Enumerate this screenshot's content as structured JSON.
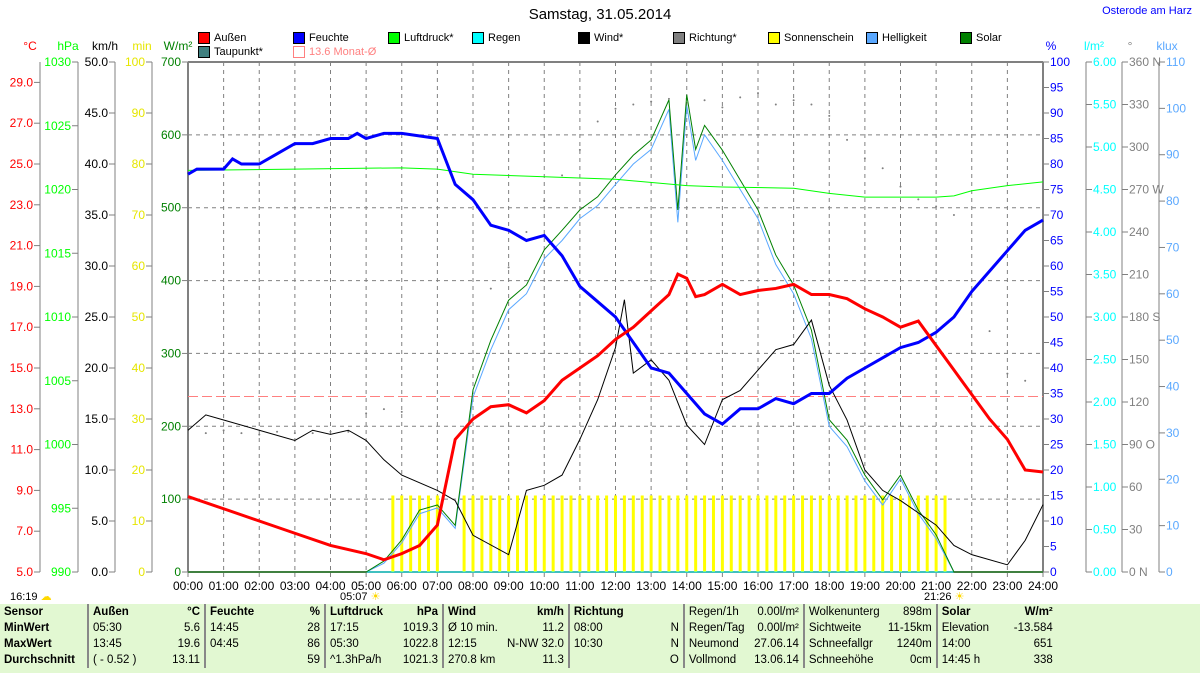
{
  "title": "Samstag, 31.05.2014",
  "location": "Osterode am Harz",
  "legend": [
    {
      "label": "Außen",
      "color": "#ff0000"
    },
    {
      "label": "Feuchte",
      "color": "#0000ff"
    },
    {
      "label": "Luftdruck*",
      "color": "#00ff00"
    },
    {
      "label": "Regen",
      "color": "#00ffff"
    },
    {
      "label": "Wind*",
      "color": "#000000"
    },
    {
      "label": "Richtung*",
      "color": "#808080"
    },
    {
      "label": "Sonnenschein",
      "color": "#ffff00"
    },
    {
      "label": "Helligkeit",
      "color": "#5aa8ff"
    },
    {
      "label": "Solar",
      "color": "#008000"
    },
    {
      "label": "Taupunkt*",
      "color": "#408080"
    },
    {
      "label": "13.6 Monat-Ø",
      "color": "#ff8080"
    }
  ],
  "markers": {
    "left": "16:19",
    "sunrise": "05:07",
    "sunset": "21:26"
  },
  "chart_data": {
    "type": "line",
    "title": "Samstag, 31.05.2014",
    "x_ticks": [
      "00:00",
      "01:00",
      "02:00",
      "03:00",
      "04:00",
      "05:00",
      "06:00",
      "07:00",
      "08:00",
      "09:00",
      "10:00",
      "11:00",
      "12:00",
      "13:00",
      "14:00",
      "15:00",
      "16:00",
      "17:00",
      "18:00",
      "19:00",
      "20:00",
      "21:00",
      "22:00",
      "23:00",
      "24:00"
    ],
    "axes": {
      "temp": {
        "unit": "°C",
        "min": 5,
        "max": 30,
        "ticks": [
          5,
          7,
          9,
          11,
          13,
          15,
          17,
          19,
          21,
          23,
          25,
          27,
          29
        ],
        "dec": 1,
        "color": "#ff0000"
      },
      "press": {
        "unit": "hPa",
        "min": 990,
        "max": 1030,
        "ticks": [
          990,
          995,
          1000,
          1005,
          1010,
          1015,
          1020,
          1025,
          1030
        ],
        "dec": 0,
        "color": "#00ff00"
      },
      "wind": {
        "unit": "km/h",
        "min": 0,
        "max": 50,
        "ticks": [
          0,
          5,
          10,
          15,
          20,
          25,
          30,
          35,
          40,
          45,
          50
        ],
        "dec": 1,
        "color": "#000000"
      },
      "sun": {
        "unit": "min",
        "min": 0,
        "max": 100,
        "ticks": [
          0,
          10,
          20,
          30,
          40,
          50,
          60,
          70,
          80,
          90,
          100
        ],
        "dec": 0,
        "color": "#ffff00"
      },
      "solar": {
        "unit": "W/m²",
        "min": 0,
        "max": 700,
        "ticks": [
          0,
          100,
          200,
          300,
          400,
          500,
          600,
          700
        ],
        "dec": 0,
        "color": "#008000"
      },
      "hum": {
        "unit": "%",
        "min": 0,
        "max": 100,
        "ticks": [
          0,
          5,
          10,
          15,
          20,
          25,
          30,
          35,
          40,
          45,
          50,
          55,
          60,
          65,
          70,
          75,
          80,
          85,
          90,
          95,
          100
        ],
        "dec": 0,
        "color": "#0000ff"
      },
      "rain": {
        "unit": "l/m²",
        "min": 0,
        "max": 6,
        "ticks": [
          0,
          0.5,
          1,
          1.5,
          2,
          2.5,
          3,
          3.5,
          4,
          4.5,
          5,
          5.5,
          6
        ],
        "dec": 2,
        "color": "#00ffff"
      },
      "dir": {
        "unit": "°",
        "min": 0,
        "max": 360,
        "ticks": [
          0,
          30,
          60,
          90,
          120,
          150,
          180,
          210,
          240,
          270,
          300,
          330,
          360
        ],
        "tick_labels": [
          "0  N",
          "30",
          "60",
          "90  O",
          "120",
          "150",
          "180 S",
          "210",
          "240",
          "270 W",
          "300",
          "330",
          "360 N"
        ],
        "dec": 0,
        "color": "#808080"
      },
      "lux": {
        "unit": "klux",
        "min": 0,
        "max": 110,
        "ticks": [
          0,
          10,
          20,
          30,
          40,
          50,
          60,
          70,
          80,
          90,
          100,
          110
        ],
        "dec": 0,
        "color": "#5aa8ff"
      }
    },
    "month_avg_temp": 13.6,
    "series": [
      {
        "name": "Außen",
        "axis": "temp",
        "color": "#ff0000",
        "width": 3,
        "x": [
          0,
          1,
          2,
          3,
          4,
          5,
          5.5,
          6,
          6.5,
          7,
          7.5,
          8,
          8.5,
          9,
          9.5,
          10,
          10.5,
          11,
          11.5,
          12,
          12.5,
          13,
          13.5,
          13.75,
          14,
          14.25,
          14.5,
          15,
          15.5,
          16,
          16.5,
          17,
          17.5,
          18,
          18.5,
          19,
          19.5,
          20,
          20.5,
          21,
          21.5,
          22,
          22.5,
          23,
          23.5,
          24
        ],
        "y": [
          8.7,
          8.1,
          7.5,
          6.9,
          6.3,
          5.9,
          5.6,
          5.9,
          6.3,
          7.3,
          11.5,
          12.5,
          13.1,
          13.2,
          12.8,
          13.4,
          14.4,
          15.0,
          15.6,
          16.4,
          17.0,
          17.8,
          18.6,
          19.6,
          19.4,
          18.5,
          18.6,
          19.1,
          18.6,
          18.8,
          18.9,
          19.1,
          18.6,
          18.6,
          18.4,
          17.9,
          17.5,
          17.0,
          17.3,
          16.1,
          14.9,
          13.7,
          12.5,
          11.5,
          10.0,
          9.9
        ]
      },
      {
        "name": "Feuchte",
        "axis": "hum",
        "color": "#0000ff",
        "width": 3,
        "x": [
          0,
          0.25,
          1,
          1.25,
          1.5,
          2,
          2.5,
          3,
          3.5,
          4,
          4.5,
          4.75,
          5,
          5.5,
          6,
          7,
          7.5,
          8,
          8.5,
          9,
          9.5,
          10,
          10.5,
          11,
          11.5,
          12,
          12.5,
          13,
          13.5,
          14,
          14.5,
          15,
          15.5,
          16,
          16.5,
          17,
          17.5,
          18,
          18.5,
          19,
          19.5,
          20,
          20.5,
          21,
          21.5,
          22,
          22.5,
          23,
          23.5,
          24
        ],
        "y": [
          78,
          79,
          79,
          81,
          80,
          80,
          82,
          84,
          84,
          85,
          85,
          86,
          85,
          86,
          86,
          85,
          76,
          73,
          68,
          67,
          65,
          66,
          62,
          56,
          53,
          50,
          45,
          40,
          39,
          35,
          31,
          29,
          32,
          32,
          34,
          33,
          35,
          35,
          38,
          40,
          42,
          44,
          45,
          47,
          50,
          55,
          59,
          63,
          67,
          69
        ]
      },
      {
        "name": "Luftdruck",
        "axis": "press",
        "color": "#00ff00",
        "width": 1,
        "x": [
          0,
          3,
          6,
          7,
          8,
          10,
          12,
          14,
          15,
          17,
          18,
          19,
          21,
          21.5,
          22,
          23,
          24
        ],
        "y": [
          1021.5,
          1021.6,
          1021.7,
          1021.6,
          1021.2,
          1021.0,
          1020.8,
          1020.3,
          1020.2,
          1020.1,
          1019.7,
          1019.4,
          1019.4,
          1019.5,
          1019.9,
          1020.3,
          1020.6
        ]
      },
      {
        "name": "Wind",
        "axis": "wind",
        "color": "#000000",
        "width": 1,
        "x": [
          0,
          0.5,
          1,
          2,
          3,
          3.5,
          4,
          4.5,
          5,
          5.5,
          6,
          7,
          7.5,
          8,
          9,
          9.5,
          10,
          10.5,
          11,
          11.5,
          12,
          12.25,
          12.5,
          13,
          13.5,
          14,
          14.5,
          15,
          15.5,
          16,
          16.5,
          17,
          17.5,
          18,
          18.5,
          19,
          19.5,
          20,
          21,
          21.5,
          22,
          23,
          23.5,
          24
        ],
        "y": [
          13.9,
          15.4,
          14.9,
          13.9,
          12.9,
          13.9,
          13.5,
          13.9,
          12.9,
          11,
          9.5,
          8,
          7,
          3.6,
          1.7,
          8,
          8.5,
          9.5,
          13,
          16.9,
          22,
          26.7,
          19.5,
          20.8,
          18.8,
          14.4,
          12.5,
          16.9,
          17.8,
          19.8,
          21.8,
          22.3,
          24.7,
          18.3,
          14.9,
          10,
          8,
          7,
          4.6,
          2.6,
          1.7,
          0.7,
          3.1,
          6.6
        ]
      },
      {
        "name": "Solar",
        "axis": "solar",
        "color": "#008000",
        "width": 1,
        "x": [
          0,
          5,
          5.5,
          6,
          6.5,
          7,
          7.5,
          8,
          8.5,
          9,
          9.5,
          10,
          10.5,
          11,
          11.5,
          12,
          12.5,
          13,
          13.5,
          13.75,
          14,
          14.25,
          14.5,
          15,
          15.5,
          16,
          16.5,
          17,
          17.5,
          18,
          18.5,
          19,
          19.5,
          20,
          20.5,
          21,
          21.5,
          24
        ],
        "y": [
          0,
          0,
          15,
          44,
          85,
          92,
          64,
          250,
          318,
          373,
          394,
          442,
          469,
          497,
          515,
          545,
          572,
          593,
          648,
          497,
          655,
          580,
          613,
          579,
          538,
          497,
          435,
          394,
          332,
          209,
          181,
          133,
          99,
          133,
          85,
          51,
          0,
          0
        ]
      },
      {
        "name": "Helligkeit",
        "axis": "solar",
        "color": "#5aa8ff",
        "width": 1,
        "x": [
          0,
          5,
          5.5,
          6,
          6.5,
          7,
          7.5,
          8,
          8.5,
          9,
          9.5,
          10,
          10.5,
          11,
          11.5,
          12,
          12.5,
          13,
          13.5,
          13.75,
          14,
          14.25,
          14.5,
          15,
          15.5,
          16,
          16.5,
          17,
          17.5,
          18,
          18.5,
          19,
          19.5,
          20,
          20.5,
          21,
          21.5,
          24
        ],
        "y": [
          0,
          0,
          12,
          40,
          80,
          88,
          60,
          240,
          305,
          360,
          382,
          430,
          455,
          485,
          503,
          532,
          560,
          580,
          635,
          480,
          640,
          565,
          600,
          565,
          525,
          485,
          422,
          382,
          320,
          200,
          172,
          125,
          92,
          128,
          80,
          46,
          0,
          0
        ]
      },
      {
        "name": "Regen",
        "axis": "rain",
        "color": "#00ffff",
        "width": 1,
        "x": [
          0,
          24
        ],
        "y": [
          0,
          0
        ]
      }
    ],
    "direction": {
      "axis": "dir",
      "x": [
        0,
        0.5,
        1,
        1.5,
        2,
        2.5,
        3,
        3.5,
        4,
        4.5,
        5,
        5.5,
        6,
        8.5,
        9,
        9.5,
        10,
        10.5,
        11,
        11.5,
        12,
        12.5,
        13,
        13.5,
        14,
        14.5,
        15,
        15.5,
        16,
        16.5,
        17,
        17.5,
        18,
        18.5,
        19,
        19.5,
        20,
        20.5,
        21,
        21.5,
        22.5,
        23,
        23.5
      ],
      "y": [
        100,
        98,
        100,
        98,
        97,
        99,
        98,
        98,
        99,
        99,
        112,
        115,
        113,
        200,
        215,
        240,
        262,
        280,
        298,
        318,
        327,
        330,
        332,
        334,
        334,
        333,
        328,
        335,
        338,
        330,
        333,
        330,
        322,
        305,
        292,
        285,
        272,
        263,
        258,
        252,
        170,
        140,
        135
      ]
    },
    "sunshine": {
      "axis": "sun",
      "x": [
        5.75,
        6,
        6.25,
        6.5,
        6.75,
        7,
        7.75,
        8,
        8.25,
        8.5,
        8.75,
        9,
        9.25,
        9.5,
        9.75,
        10,
        10.25,
        10.5,
        10.75,
        11,
        11.25,
        11.5,
        11.75,
        12,
        12.25,
        12.5,
        12.75,
        13,
        13.25,
        13.5,
        13.75,
        14,
        14.25,
        14.5,
        14.75,
        15,
        15.25,
        15.5,
        15.75,
        16,
        16.25,
        16.5,
        16.75,
        17,
        17.25,
        17.5,
        17.75,
        18,
        18.25,
        18.5,
        18.75,
        19,
        19.25,
        19.5,
        19.75,
        20,
        20.25,
        20.5,
        20.75,
        21,
        21.25
      ],
      "minutes": 15
    }
  },
  "table": {
    "headers": [
      "Sensor",
      "Außen",
      "°C",
      "Feuchte",
      "%",
      "Luftdruck",
      "hPa",
      "Wind",
      "km/h",
      "Richtung",
      "",
      "Regen/1h",
      "0.00l/m²",
      "Wolkenunterg",
      "898m",
      "Solar",
      "W/m²"
    ],
    "rows": [
      [
        "MinWert",
        "05:30",
        "5.6",
        "14:45",
        "28",
        "17:15",
        "1019.3",
        "Ø 10 min.",
        "11.2",
        "08:00",
        "N",
        "Regen/Tag",
        "0.00l/m²",
        "Sichtweite",
        "11-15km",
        "Elevation",
        "-13.584"
      ],
      [
        "MaxWert",
        "13:45",
        "19.6",
        "04:45",
        "86",
        "05:30",
        "1022.8",
        "12:15",
        "N-NW 32.0",
        "10:30",
        "N",
        "Neumond",
        "27.06.14",
        "Schneefallgr",
        "1240m",
        "14:00",
        "651"
      ],
      [
        "Durchschnitt",
        "( - 0.52 )",
        "13.11",
        "",
        "59",
        "^1.3hPa/h",
        "1021.3",
        "270.8 km",
        "11.3",
        "",
        "O",
        "Vollmond",
        "13.06.14",
        "Schneehöhe",
        "0cm",
        "14:45 h",
        "338"
      ]
    ]
  }
}
